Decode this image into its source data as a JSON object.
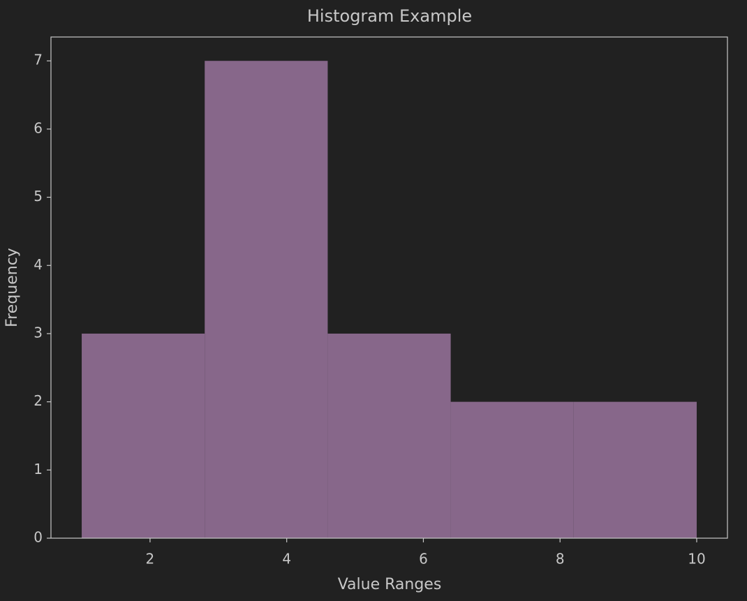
{
  "chart_data": {
    "type": "histogram",
    "title": "Histogram Example",
    "xlabel": "Value Ranges",
    "ylabel": "Frequency",
    "bins": [
      1,
      2.8,
      4.6,
      6.4,
      8.2,
      10
    ],
    "values": [
      3,
      7,
      3,
      2,
      2
    ],
    "color": "#87678a",
    "xlim": [
      0.55,
      10.45
    ],
    "xticks": [
      2,
      4,
      6,
      8,
      10
    ],
    "ylim": [
      0,
      7.35
    ],
    "yticks": [
      0,
      1,
      2,
      3,
      4,
      5,
      6,
      7
    ]
  }
}
